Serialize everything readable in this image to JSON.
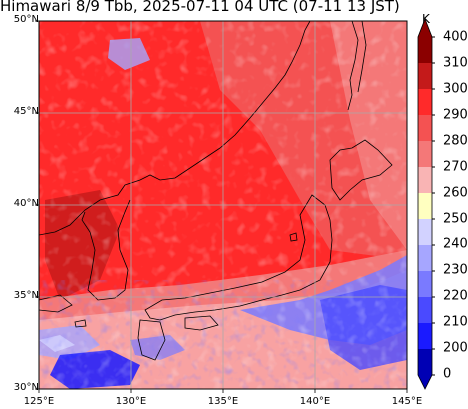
{
  "title": "Himawari 8/9 Tbb, 2025-07-11 04 UTC (07-11 13 JST)",
  "map": {
    "lat_labels": [
      "50°N",
      "45°N",
      "40°N",
      "35°N",
      "30°N"
    ],
    "lon_labels": [
      "125°E",
      "130°E",
      "135°E",
      "140°E",
      "145°E"
    ],
    "lat_values": [
      50,
      45,
      40,
      35,
      30
    ],
    "lon_values": [
      125,
      130,
      135,
      140,
      145
    ],
    "extent": {
      "lon": [
        125,
        145
      ],
      "lat": [
        30,
        50
      ]
    },
    "gridlines": true,
    "coastlines": true,
    "field": "Tbb"
  },
  "colorbar": {
    "unit": "K",
    "levels": [
      "400",
      "310",
      "300",
      "290",
      "280",
      "270",
      "260",
      "250",
      "240",
      "230",
      "220",
      "210",
      "200",
      "0"
    ],
    "colors": [
      "#8b0000",
      "#c41a1a",
      "#ff2a2a",
      "#f45252",
      "#f47878",
      "#f9b4b4",
      "#ffffc0",
      "#d2d2ff",
      "#a6a6ff",
      "#7a7aff",
      "#4a4aff",
      "#1a1aff",
      "#0000b4"
    ]
  }
}
